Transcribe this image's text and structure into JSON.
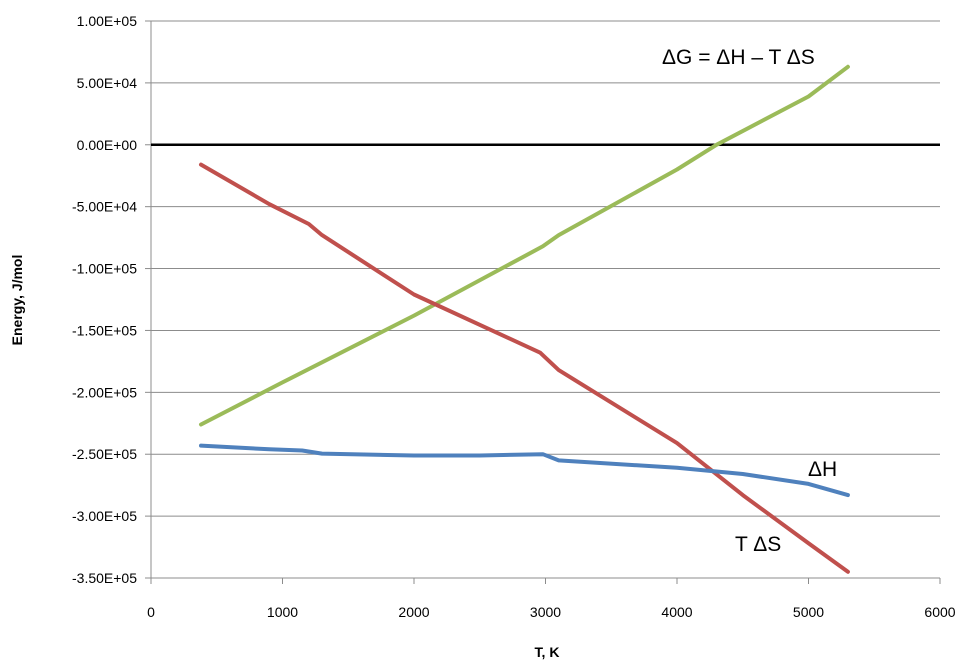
{
  "chart_data": {
    "type": "line",
    "title": "",
    "xlabel": "T, K",
    "ylabel": "Energy, J/mol",
    "xlim": [
      0,
      6000
    ],
    "ylim": [
      -350000,
      100000
    ],
    "x_ticks": [
      "0",
      "1000",
      "2000",
      "3000",
      "4000",
      "5000",
      "6000"
    ],
    "y_ticks": [
      "1.00E+05",
      "5.00E+04",
      "0.00E+00",
      "-5.00E+04",
      "-1.00E+05",
      "-1.50E+05",
      "-2.00E+05",
      "-2.50E+05",
      "-3.00E+05",
      "-3.50E+05"
    ],
    "grid": "horizontal",
    "zero_line": true,
    "series": [
      {
        "name": "ΔG = ΔH – T ΔS",
        "color": "#9BBB59",
        "points": [
          [
            380,
            -226000
          ],
          [
            1000,
            -192000
          ],
          [
            2000,
            -138000
          ],
          [
            2980,
            -82000
          ],
          [
            3100,
            -73000
          ],
          [
            4000,
            -20000
          ],
          [
            4300,
            0
          ],
          [
            5000,
            39000
          ],
          [
            5300,
            63000
          ]
        ]
      },
      {
        "name": "T ΔS",
        "color": "#C0504D",
        "points": [
          [
            380,
            -16000
          ],
          [
            900,
            -48000
          ],
          [
            1200,
            -64000
          ],
          [
            1300,
            -73000
          ],
          [
            2000,
            -121000
          ],
          [
            2960,
            -168000
          ],
          [
            3000,
            -172000
          ],
          [
            3100,
            -182000
          ],
          [
            4000,
            -241000
          ],
          [
            4500,
            -283000
          ],
          [
            5000,
            -322000
          ],
          [
            5300,
            -345000
          ]
        ]
      },
      {
        "name": "ΔH",
        "color": "#4F81BD",
        "points": [
          [
            380,
            -243000
          ],
          [
            900,
            -246000
          ],
          [
            1150,
            -247000
          ],
          [
            1300,
            -249500
          ],
          [
            2000,
            -251000
          ],
          [
            2500,
            -251000
          ],
          [
            2980,
            -250000
          ],
          [
            3100,
            -255000
          ],
          [
            4000,
            -261000
          ],
          [
            4500,
            -266000
          ],
          [
            5000,
            -274000
          ],
          [
            5300,
            -283000
          ]
        ]
      }
    ],
    "annotations": [
      {
        "text": "ΔG = ΔH – T ΔS"
      },
      {
        "text": "ΔH"
      },
      {
        "text": "T ΔS"
      }
    ]
  }
}
